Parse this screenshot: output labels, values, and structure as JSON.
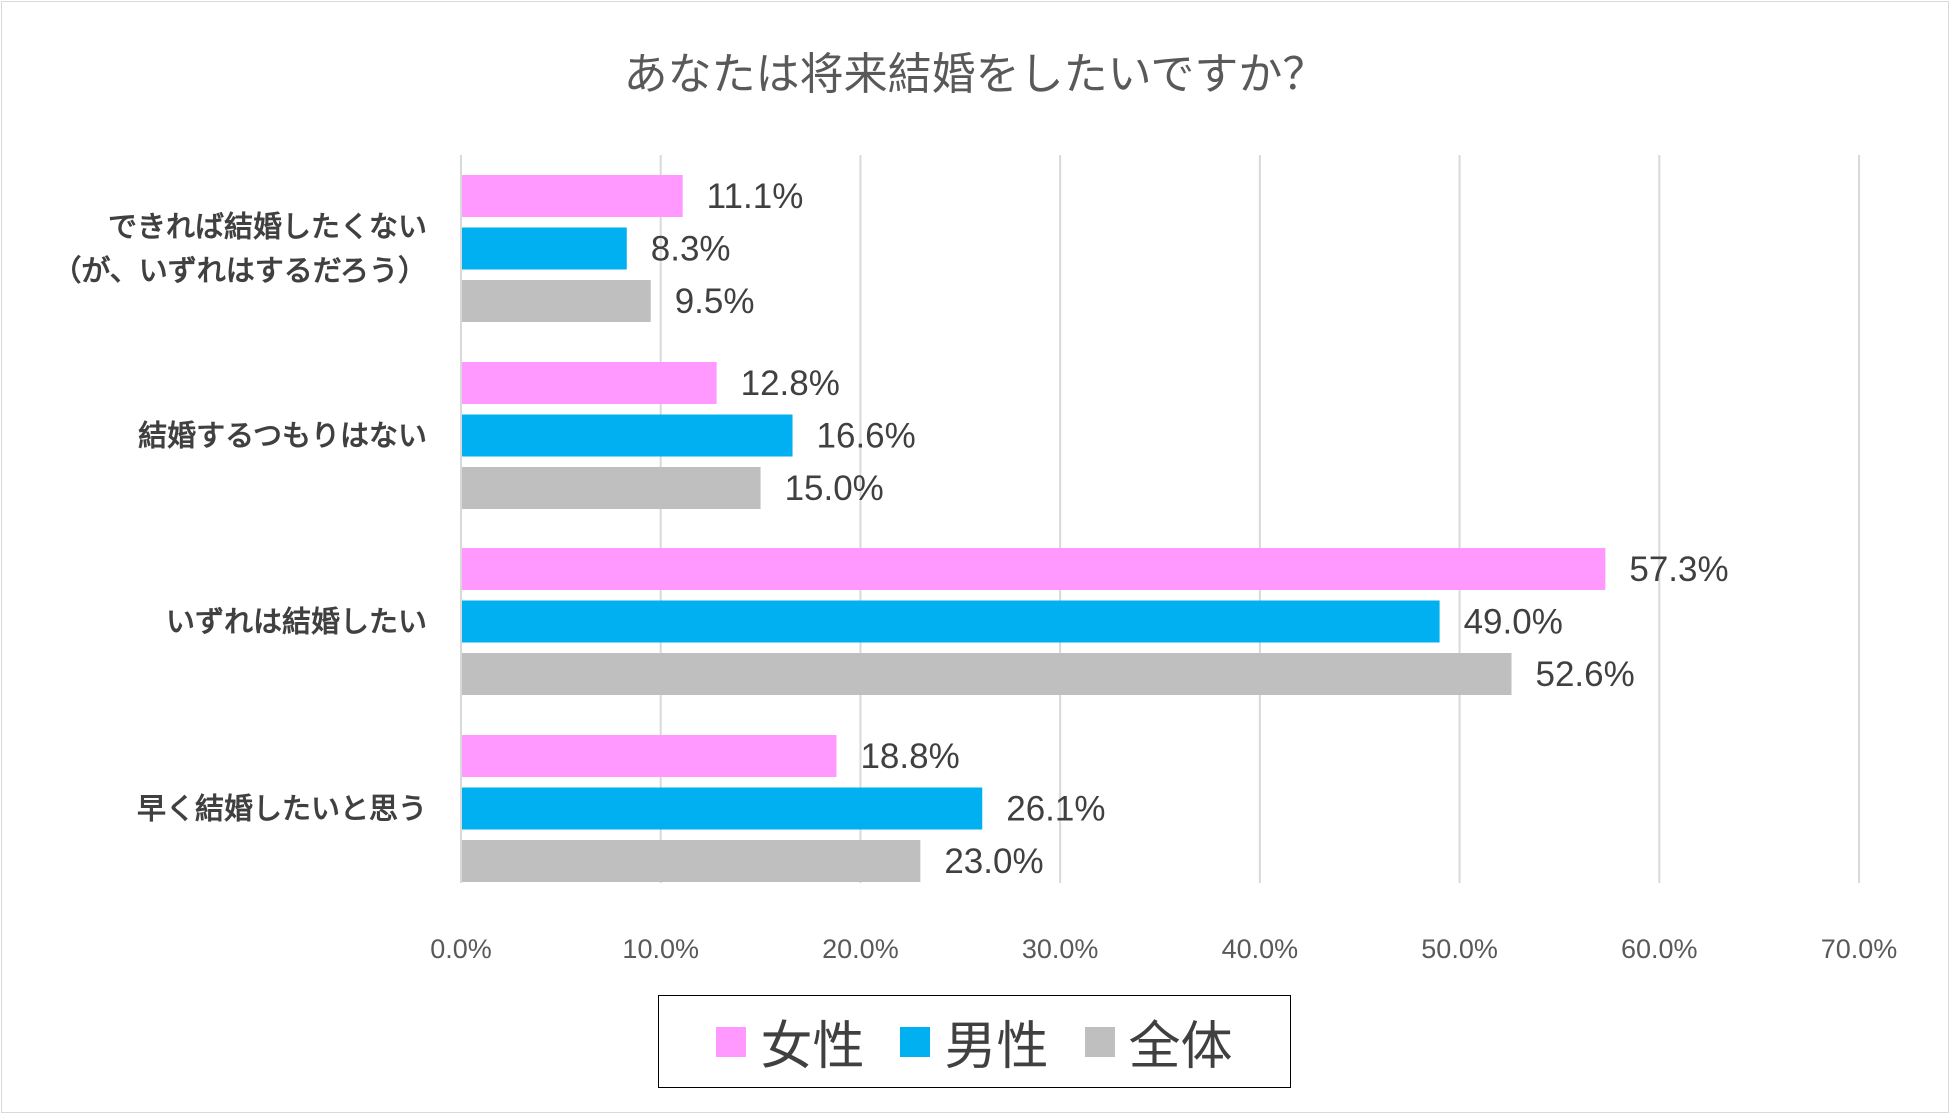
{
  "chart_data": {
    "type": "bar",
    "orientation": "horizontal",
    "title": "あなたは将来結婚をしたいですか？",
    "categories": [
      [
        "できれば結婚したくない",
        "（が、いずれはするだろう）"
      ],
      [
        "結婚するつもりはない"
      ],
      [
        "いずれは結婚したい"
      ],
      [
        "早く結婚したいと思う"
      ]
    ],
    "series": [
      {
        "name": "女性",
        "color": "#ff99ff",
        "values": [
          11.1,
          12.8,
          57.3,
          18.8
        ],
        "labels": [
          "11.1%",
          "12.8%",
          "57.3%",
          "18.8%"
        ]
      },
      {
        "name": "男性",
        "color": "#00b0f0",
        "values": [
          8.3,
          16.6,
          49.0,
          26.1
        ],
        "labels": [
          "8.3%",
          "16.6%",
          "49.0%",
          "26.1%"
        ]
      },
      {
        "name": "全体",
        "color": "#bfbfbf",
        "values": [
          9.5,
          15.0,
          52.6,
          23.0
        ],
        "labels": [
          "9.5%",
          "15.0%",
          "52.6%",
          "23.0%"
        ]
      }
    ],
    "xlim": [
      0,
      70
    ],
    "xticks": [
      "0.0%",
      "10.0%",
      "20.0%",
      "30.0%",
      "40.0%",
      "50.0%",
      "60.0%",
      "70.0%"
    ],
    "grid": true,
    "legend": "bottom"
  }
}
